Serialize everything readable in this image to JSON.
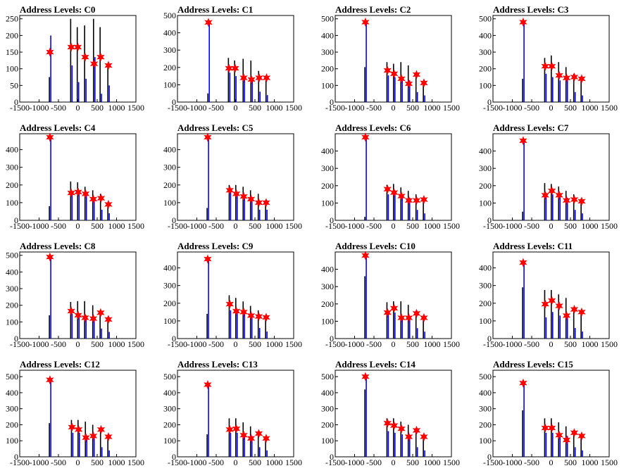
{
  "chart_data": [
    {
      "type": "bar",
      "title": "Address Levels: C0",
      "xlim": [
        -1500,
        1500
      ],
      "ylim": [
        0,
        260
      ],
      "yticks": [
        0,
        50,
        100,
        150,
        200,
        250
      ],
      "xticks": [
        -1500,
        -1000,
        -500,
        0,
        500,
        1000,
        1500
      ],
      "peaks": [
        {
          "x": -720,
          "marker": 150,
          "black": 75,
          "blue": 200
        },
        {
          "x": -170,
          "marker": 165,
          "black": 250,
          "blue": 110
        },
        {
          "x": 0,
          "marker": 165,
          "black": 225,
          "blue": 60
        },
        {
          "x": 190,
          "marker": 135,
          "black": 230,
          "blue": 70
        },
        {
          "x": 420,
          "marker": 115,
          "black": 250,
          "blue": 135
        },
        {
          "x": 590,
          "marker": 135,
          "black": 225,
          "blue": 25
        },
        {
          "x": 790,
          "marker": 110,
          "black": 115,
          "blue": 50
        }
      ]
    },
    {
      "type": "bar",
      "title": "Address Levels: C1",
      "xlim": [
        -1500,
        1500
      ],
      "ylim": [
        0,
        500
      ],
      "yticks": [
        0,
        100,
        200,
        300,
        400,
        500
      ],
      "xticks": [
        -1500,
        -1000,
        -500,
        0,
        500,
        1000,
        1500
      ],
      "peaks": [
        {
          "x": -700,
          "marker": 460,
          "black": 50,
          "blue": 470
        },
        {
          "x": -170,
          "marker": 195,
          "black": 255,
          "blue": 170
        },
        {
          "x": -10,
          "marker": 195,
          "black": 240,
          "blue": 150
        },
        {
          "x": 210,
          "marker": 140,
          "black": 250,
          "blue": 150
        },
        {
          "x": 410,
          "marker": 130,
          "black": 240,
          "blue": 140
        },
        {
          "x": 610,
          "marker": 140,
          "black": 180,
          "blue": 60
        },
        {
          "x": 800,
          "marker": 140,
          "black": 125,
          "blue": 40
        }
      ]
    },
    {
      "type": "bar",
      "title": "Address Levels: C2",
      "xlim": [
        -1500,
        1500
      ],
      "ylim": [
        0,
        520
      ],
      "yticks": [
        0,
        100,
        200,
        300,
        400,
        500
      ],
      "xticks": [
        -1500,
        -1000,
        -500,
        0,
        500,
        1000,
        1500
      ],
      "peaks": [
        {
          "x": -720,
          "marker": 480,
          "black": 210,
          "blue": 490
        },
        {
          "x": -150,
          "marker": 190,
          "black": 240,
          "blue": 160
        },
        {
          "x": 20,
          "marker": 170,
          "black": 230,
          "blue": 150
        },
        {
          "x": 210,
          "marker": 140,
          "black": 240,
          "blue": 150
        },
        {
          "x": 400,
          "marker": 110,
          "black": 220,
          "blue": 130
        },
        {
          "x": 600,
          "marker": 165,
          "black": 180,
          "blue": 60
        },
        {
          "x": 790,
          "marker": 115,
          "black": 125,
          "blue": 40
        }
      ]
    },
    {
      "type": "bar",
      "title": "Address Levels: C3",
      "xlim": [
        -1500,
        1500
      ],
      "ylim": [
        0,
        520
      ],
      "yticks": [
        0,
        100,
        200,
        300,
        400,
        500
      ],
      "xticks": [
        -1500,
        -1000,
        -500,
        0,
        500,
        1000,
        1500
      ],
      "peaks": [
        {
          "x": -720,
          "marker": 480,
          "black": 140,
          "blue": 490
        },
        {
          "x": -150,
          "marker": 215,
          "black": 265,
          "blue": 170
        },
        {
          "x": 20,
          "marker": 215,
          "black": 280,
          "blue": 150
        },
        {
          "x": 210,
          "marker": 160,
          "black": 240,
          "blue": 130
        },
        {
          "x": 400,
          "marker": 145,
          "black": 210,
          "blue": 140
        },
        {
          "x": 600,
          "marker": 150,
          "black": 170,
          "blue": 60
        },
        {
          "x": 790,
          "marker": 140,
          "black": 130,
          "blue": 40
        }
      ]
    },
    {
      "type": "bar",
      "title": "Address Levels: C4",
      "xlim": [
        -1500,
        1500
      ],
      "ylim": [
        0,
        490
      ],
      "yticks": [
        0,
        100,
        200,
        300,
        400
      ],
      "xticks": [
        -1500,
        -1000,
        -500,
        0,
        500,
        1000,
        1500
      ],
      "peaks": [
        {
          "x": -720,
          "marker": 470,
          "black": 80,
          "blue": 480
        },
        {
          "x": -170,
          "marker": 155,
          "black": 220,
          "blue": 150
        },
        {
          "x": 10,
          "marker": 160,
          "black": 215,
          "blue": 150
        },
        {
          "x": 200,
          "marker": 150,
          "black": 190,
          "blue": 140
        },
        {
          "x": 400,
          "marker": 120,
          "black": 170,
          "blue": 130
        },
        {
          "x": 600,
          "marker": 125,
          "black": 150,
          "blue": 60
        },
        {
          "x": 790,
          "marker": 90,
          "black": 100,
          "blue": 40
        }
      ]
    },
    {
      "type": "bar",
      "title": "Address Levels: C5",
      "xlim": [
        -1500,
        1500
      ],
      "ylim": [
        0,
        490
      ],
      "yticks": [
        0,
        100,
        200,
        300,
        400
      ],
      "xticks": [
        -1500,
        -1000,
        -500,
        0,
        500,
        1000,
        1500
      ],
      "peaks": [
        {
          "x": -720,
          "marker": 470,
          "black": 70,
          "blue": 480
        },
        {
          "x": -150,
          "marker": 170,
          "black": 200,
          "blue": 160
        },
        {
          "x": 20,
          "marker": 150,
          "black": 200,
          "blue": 160
        },
        {
          "x": 210,
          "marker": 135,
          "black": 190,
          "blue": 140
        },
        {
          "x": 400,
          "marker": 120,
          "black": 170,
          "blue": 130
        },
        {
          "x": 600,
          "marker": 100,
          "black": 150,
          "blue": 60
        },
        {
          "x": 790,
          "marker": 100,
          "black": 115,
          "blue": 60
        }
      ]
    },
    {
      "type": "bar",
      "title": "Address Levels: C6",
      "xlim": [
        -1500,
        1500
      ],
      "ylim": [
        0,
        500
      ],
      "yticks": [
        0,
        100,
        200,
        300,
        400
      ],
      "xticks": [
        -1500,
        -1000,
        -500,
        0,
        500,
        1000,
        1500
      ],
      "peaks": [
        {
          "x": -720,
          "marker": 480,
          "black": 20,
          "blue": 490
        },
        {
          "x": -150,
          "marker": 180,
          "black": 205,
          "blue": 150
        },
        {
          "x": 20,
          "marker": 160,
          "black": 210,
          "blue": 150
        },
        {
          "x": 210,
          "marker": 140,
          "black": 190,
          "blue": 140
        },
        {
          "x": 400,
          "marker": 115,
          "black": 170,
          "blue": 130
        },
        {
          "x": 600,
          "marker": 115,
          "black": 150,
          "blue": 60
        },
        {
          "x": 790,
          "marker": 120,
          "black": 125,
          "blue": 40
        }
      ]
    },
    {
      "type": "bar",
      "title": "Address Levels: C7",
      "xlim": [
        -1500,
        1500
      ],
      "ylim": [
        0,
        500
      ],
      "yticks": [
        0,
        100,
        200,
        300,
        400
      ],
      "xticks": [
        -1500,
        -1000,
        -500,
        0,
        500,
        1000,
        1500
      ],
      "peaks": [
        {
          "x": -720,
          "marker": 460,
          "black": 50,
          "blue": 470
        },
        {
          "x": -150,
          "marker": 145,
          "black": 215,
          "blue": 140
        },
        {
          "x": 20,
          "marker": 170,
          "black": 210,
          "blue": 150
        },
        {
          "x": 210,
          "marker": 145,
          "black": 195,
          "blue": 140
        },
        {
          "x": 400,
          "marker": 115,
          "black": 170,
          "blue": 130
        },
        {
          "x": 600,
          "marker": 120,
          "black": 150,
          "blue": 60
        },
        {
          "x": 790,
          "marker": 110,
          "black": 125,
          "blue": 40
        }
      ]
    },
    {
      "type": "bar",
      "title": "Address Levels: C8",
      "xlim": [
        -1500,
        1500
      ],
      "ylim": [
        0,
        520
      ],
      "yticks": [
        0,
        100,
        200,
        300,
        400,
        500
      ],
      "xticks": [
        -1500,
        -1000,
        -500,
        0,
        500,
        1000,
        1500
      ],
      "peaks": [
        {
          "x": -720,
          "marker": 490,
          "black": 140,
          "blue": 500
        },
        {
          "x": -170,
          "marker": 165,
          "black": 220,
          "blue": 150
        },
        {
          "x": 10,
          "marker": 140,
          "black": 225,
          "blue": 150
        },
        {
          "x": 190,
          "marker": 125,
          "black": 225,
          "blue": 140
        },
        {
          "x": 400,
          "marker": 120,
          "black": 200,
          "blue": 130
        },
        {
          "x": 590,
          "marker": 155,
          "black": 170,
          "blue": 60
        },
        {
          "x": 790,
          "marker": 115,
          "black": 130,
          "blue": 40
        }
      ]
    },
    {
      "type": "bar",
      "title": "Address Levels: C9",
      "xlim": [
        -1500,
        1500
      ],
      "ylim": [
        0,
        490
      ],
      "yticks": [
        0,
        100,
        200,
        300,
        400
      ],
      "xticks": [
        -1500,
        -1000,
        -500,
        0,
        500,
        1000,
        1500
      ],
      "peaks": [
        {
          "x": -720,
          "marker": 450,
          "black": 140,
          "blue": 460
        },
        {
          "x": -150,
          "marker": 195,
          "black": 245,
          "blue": 160
        },
        {
          "x": 20,
          "marker": 155,
          "black": 230,
          "blue": 150
        },
        {
          "x": 210,
          "marker": 150,
          "black": 210,
          "blue": 140
        },
        {
          "x": 400,
          "marker": 130,
          "black": 185,
          "blue": 130
        },
        {
          "x": 600,
          "marker": 125,
          "black": 160,
          "blue": 60
        },
        {
          "x": 790,
          "marker": 120,
          "black": 125,
          "blue": 40
        }
      ]
    },
    {
      "type": "bar",
      "title": "Address Levels: C10",
      "xlim": [
        -1500,
        1500
      ],
      "ylim": [
        0,
        500
      ],
      "yticks": [
        0,
        100,
        200,
        300,
        400
      ],
      "xticks": [
        -1500,
        -1000,
        -500,
        0,
        500,
        1000,
        1500
      ],
      "peaks": [
        {
          "x": -720,
          "marker": 480,
          "black": 360,
          "blue": 490
        },
        {
          "x": -150,
          "marker": 150,
          "black": 210,
          "blue": 140
        },
        {
          "x": 20,
          "marker": 175,
          "black": 215,
          "blue": 150
        },
        {
          "x": 210,
          "marker": 120,
          "black": 215,
          "blue": 130
        },
        {
          "x": 400,
          "marker": 120,
          "black": 195,
          "blue": 130
        },
        {
          "x": 600,
          "marker": 145,
          "black": 160,
          "blue": 60
        },
        {
          "x": 790,
          "marker": 120,
          "black": 125,
          "blue": 40
        }
      ]
    },
    {
      "type": "bar",
      "title": "Address Levels: C11",
      "xlim": [
        -1500,
        1500
      ],
      "ylim": [
        0,
        490
      ],
      "yticks": [
        0,
        100,
        200,
        300,
        400
      ],
      "xticks": [
        -1500,
        -1000,
        -500,
        0,
        500,
        1000,
        1500
      ],
      "peaks": [
        {
          "x": -720,
          "marker": 430,
          "black": 290,
          "blue": 440
        },
        {
          "x": -150,
          "marker": 195,
          "black": 275,
          "blue": 120
        },
        {
          "x": 20,
          "marker": 215,
          "black": 275,
          "blue": 150
        },
        {
          "x": 210,
          "marker": 185,
          "black": 250,
          "blue": 130
        },
        {
          "x": 400,
          "marker": 130,
          "black": 230,
          "blue": 130
        },
        {
          "x": 600,
          "marker": 165,
          "black": 175,
          "blue": 60
        },
        {
          "x": 790,
          "marker": 150,
          "black": 140,
          "blue": 40
        }
      ]
    },
    {
      "type": "bar",
      "title": "Address Levels: C12",
      "xlim": [
        -1500,
        1500
      ],
      "ylim": [
        0,
        540
      ],
      "yticks": [
        0,
        100,
        200,
        300,
        400,
        500
      ],
      "xticks": [
        -1500,
        -1000,
        -500,
        0,
        500,
        1000,
        1500
      ],
      "peaks": [
        {
          "x": -720,
          "marker": 480,
          "black": 210,
          "blue": 490
        },
        {
          "x": -150,
          "marker": 185,
          "black": 230,
          "blue": 150
        },
        {
          "x": 20,
          "marker": 170,
          "black": 230,
          "blue": 150
        },
        {
          "x": 210,
          "marker": 120,
          "black": 220,
          "blue": 130
        },
        {
          "x": 400,
          "marker": 130,
          "black": 200,
          "blue": 130
        },
        {
          "x": 600,
          "marker": 170,
          "black": 180,
          "blue": 60
        },
        {
          "x": 790,
          "marker": 125,
          "black": 130,
          "blue": 40
        }
      ]
    },
    {
      "type": "bar",
      "title": "Address Levels: C13",
      "xlim": [
        -1500,
        1500
      ],
      "ylim": [
        0,
        540
      ],
      "yticks": [
        0,
        100,
        200,
        300,
        400,
        500
      ],
      "xticks": [
        -1500,
        -1000,
        -500,
        0,
        500,
        1000,
        1500
      ],
      "peaks": [
        {
          "x": -720,
          "marker": 450,
          "black": 140,
          "blue": 460
        },
        {
          "x": -150,
          "marker": 170,
          "black": 240,
          "blue": 150
        },
        {
          "x": 20,
          "marker": 175,
          "black": 240,
          "blue": 150
        },
        {
          "x": 210,
          "marker": 135,
          "black": 215,
          "blue": 130
        },
        {
          "x": 400,
          "marker": 115,
          "black": 190,
          "blue": 130
        },
        {
          "x": 600,
          "marker": 145,
          "black": 160,
          "blue": 60
        },
        {
          "x": 790,
          "marker": 115,
          "black": 125,
          "blue": 40
        }
      ]
    },
    {
      "type": "bar",
      "title": "Address Levels: C14",
      "xlim": [
        -1500,
        1500
      ],
      "ylim": [
        0,
        540
      ],
      "yticks": [
        0,
        100,
        200,
        300,
        400,
        500
      ],
      "xticks": [
        -1500,
        -1000,
        -500,
        0,
        500,
        1000,
        1500
      ],
      "peaks": [
        {
          "x": -720,
          "marker": 500,
          "black": 420,
          "blue": 510
        },
        {
          "x": -150,
          "marker": 210,
          "black": 240,
          "blue": 160
        },
        {
          "x": 20,
          "marker": 195,
          "black": 240,
          "blue": 150
        },
        {
          "x": 210,
          "marker": 175,
          "black": 220,
          "blue": 140
        },
        {
          "x": 400,
          "marker": 125,
          "black": 200,
          "blue": 130
        },
        {
          "x": 600,
          "marker": 165,
          "black": 180,
          "blue": 60
        },
        {
          "x": 790,
          "marker": 125,
          "black": 135,
          "blue": 40
        }
      ]
    },
    {
      "type": "bar",
      "title": "Address Levels: C15",
      "xlim": [
        -1500,
        1500
      ],
      "ylim": [
        0,
        540
      ],
      "yticks": [
        0,
        100,
        200,
        300,
        400,
        500
      ],
      "xticks": [
        -1500,
        -1000,
        -500,
        0,
        500,
        1000,
        1500
      ],
      "peaks": [
        {
          "x": -720,
          "marker": 460,
          "black": 290,
          "blue": 470
        },
        {
          "x": -150,
          "marker": 180,
          "black": 240,
          "blue": 150
        },
        {
          "x": 20,
          "marker": 180,
          "black": 240,
          "blue": 150
        },
        {
          "x": 210,
          "marker": 135,
          "black": 215,
          "blue": 130
        },
        {
          "x": 400,
          "marker": 105,
          "black": 190,
          "blue": 130
        },
        {
          "x": 600,
          "marker": 150,
          "black": 165,
          "blue": 60
        },
        {
          "x": 790,
          "marker": 130,
          "black": 130,
          "blue": 40
        }
      ]
    }
  ],
  "colors": {
    "black_series": "#000000",
    "blue_series": "#0000ff",
    "marker": "#ff0000",
    "axis": "#000000"
  }
}
